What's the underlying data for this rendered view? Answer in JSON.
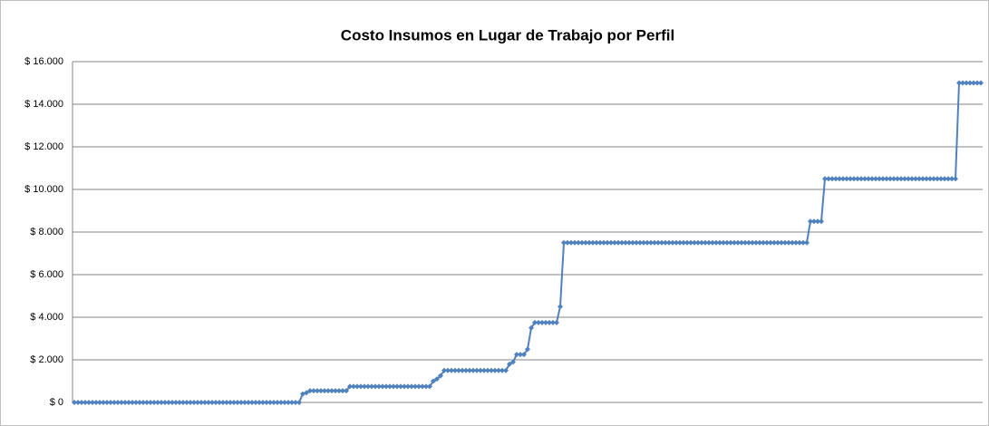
{
  "chart_data": {
    "type": "line",
    "title": "Costo Insumos en Lugar de Trabajo por Perfil",
    "color": "#4f81bd",
    "grid": true,
    "ylim": [
      0,
      16000
    ],
    "yticks": [
      {
        "value": 0,
        "label": "$ 0"
      },
      {
        "value": 2000,
        "label": "$ 2.000"
      },
      {
        "value": 4000,
        "label": "$ 4.000"
      },
      {
        "value": 6000,
        "label": "$ 6.000"
      },
      {
        "value": 8000,
        "label": "$ 8.000"
      },
      {
        "value": 10000,
        "label": "$ 10.000"
      },
      {
        "value": 12000,
        "label": "$ 12.000"
      },
      {
        "value": 14000,
        "label": "$ 14.000"
      },
      {
        "value": 16000,
        "label": "$ 16.000"
      }
    ],
    "values": [
      0,
      0,
      0,
      0,
      0,
      0,
      0,
      0,
      0,
      0,
      0,
      0,
      0,
      0,
      0,
      0,
      0,
      0,
      0,
      0,
      0,
      0,
      0,
      0,
      0,
      0,
      0,
      0,
      0,
      0,
      0,
      0,
      0,
      0,
      0,
      0,
      0,
      0,
      0,
      0,
      0,
      0,
      0,
      0,
      0,
      0,
      0,
      0,
      0,
      0,
      0,
      0,
      0,
      0,
      0,
      0,
      0,
      0,
      0,
      0,
      0,
      0,
      0,
      400,
      450,
      550,
      550,
      550,
      550,
      550,
      550,
      550,
      550,
      550,
      550,
      550,
      750,
      750,
      750,
      750,
      750,
      750,
      750,
      750,
      750,
      750,
      750,
      750,
      750,
      750,
      750,
      750,
      750,
      750,
      750,
      750,
      750,
      750,
      750,
      1000,
      1100,
      1250,
      1500,
      1500,
      1500,
      1500,
      1500,
      1500,
      1500,
      1500,
      1500,
      1500,
      1500,
      1500,
      1500,
      1500,
      1500,
      1500,
      1500,
      1500,
      1800,
      1900,
      2250,
      2250,
      2250,
      2500,
      3500,
      3750,
      3750,
      3750,
      3750,
      3750,
      3750,
      3750,
      4500,
      7500,
      7500,
      7500,
      7500,
      7500,
      7500,
      7500,
      7500,
      7500,
      7500,
      7500,
      7500,
      7500,
      7500,
      7500,
      7500,
      7500,
      7500,
      7500,
      7500,
      7500,
      7500,
      7500,
      7500,
      7500,
      7500,
      7500,
      7500,
      7500,
      7500,
      7500,
      7500,
      7500,
      7500,
      7500,
      7500,
      7500,
      7500,
      7500,
      7500,
      7500,
      7500,
      7500,
      7500,
      7500,
      7500,
      7500,
      7500,
      7500,
      7500,
      7500,
      7500,
      7500,
      7500,
      7500,
      7500,
      7500,
      7500,
      7500,
      7500,
      7500,
      7500,
      7500,
      7500,
      7500,
      7500,
      7500,
      7500,
      8500,
      8500,
      8500,
      8500,
      10500,
      10500,
      10500,
      10500,
      10500,
      10500,
      10500,
      10500,
      10500,
      10500,
      10500,
      10500,
      10500,
      10500,
      10500,
      10500,
      10500,
      10500,
      10500,
      10500,
      10500,
      10500,
      10500,
      10500,
      10500,
      10500,
      10500,
      10500,
      10500,
      10500,
      10500,
      10500,
      10500,
      10500,
      10500,
      10500,
      10500,
      15000,
      15000,
      15000,
      15000,
      15000,
      15000,
      15000
    ]
  }
}
